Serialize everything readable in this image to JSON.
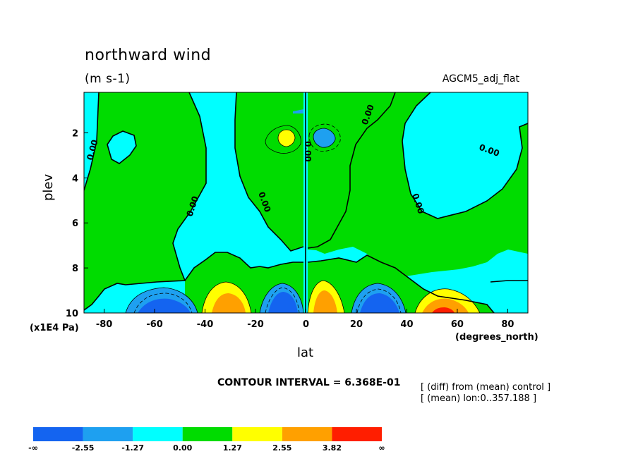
{
  "header": {
    "title": "northward wind",
    "units": "(m s-1)",
    "dataset": "AGCM5_adj_flat"
  },
  "axes": {
    "ylabel": "plev",
    "yunit": "(x1E4 Pa)",
    "xlabel": "lat",
    "xunit": "(degrees_north)"
  },
  "footer": {
    "contour_interval": "CONTOUR INTERVAL = 6.368E-01",
    "note1": "[ (diff) from (mean) control ]",
    "note2": "[ (mean) lon:0..357.188 ]"
  },
  "chart_data": {
    "type": "heatmap",
    "title": "northward wind",
    "subtitle": "(m s-1)",
    "xlabel": "lat",
    "ylabel": "plev",
    "xlim": [
      -88,
      88
    ],
    "ylim": [
      0.2,
      10
    ],
    "y_inverted": true,
    "x_ticks": [
      -80,
      -60,
      -40,
      -20,
      0,
      20,
      40,
      60,
      80
    ],
    "x_tick_labels": [
      "-80",
      "-60",
      "-40",
      "-20",
      "0",
      "20",
      "40",
      "60",
      "80"
    ],
    "y_ticks": [
      2,
      4,
      6,
      8,
      10
    ],
    "y_tick_labels": [
      "2",
      "4",
      "6",
      "8",
      "10"
    ],
    "contour_label": "0.00",
    "colorbar": {
      "colors": [
        "#1464f0",
        "#1ea0f0",
        "#00ffff",
        "#00dc00",
        "#ffff00",
        "#ffa000",
        "#ff1e00"
      ],
      "labels": [
        "-∞",
        "-2.55",
        "-1.27",
        "0.00",
        "1.27",
        "2.55",
        "3.82",
        "∞"
      ]
    },
    "features": [
      {
        "sign": "negative",
        "lat_center": -53,
        "plev": 10,
        "min_approx": -2.55
      },
      {
        "sign": "positive",
        "lat_center": -33,
        "plev": 10,
        "max_approx": 3.82
      },
      {
        "sign": "negative",
        "lat_center": -8,
        "plev": 10,
        "min_approx": -2.55
      },
      {
        "sign": "positive",
        "lat_center": 7,
        "plev": 10,
        "max_approx": 2.55
      },
      {
        "sign": "negative",
        "lat_center": 30,
        "plev": 10,
        "min_approx": -2.55
      },
      {
        "sign": "positive",
        "lat_center": 52,
        "plev": 10,
        "max_approx": 3.82
      },
      {
        "sign": "positive",
        "lat_center": -7,
        "plev": 2.1,
        "max_approx": 1.27
      },
      {
        "sign": "negative",
        "lat_center": 8,
        "plev": 2.1,
        "min_approx": -1.27
      }
    ]
  }
}
